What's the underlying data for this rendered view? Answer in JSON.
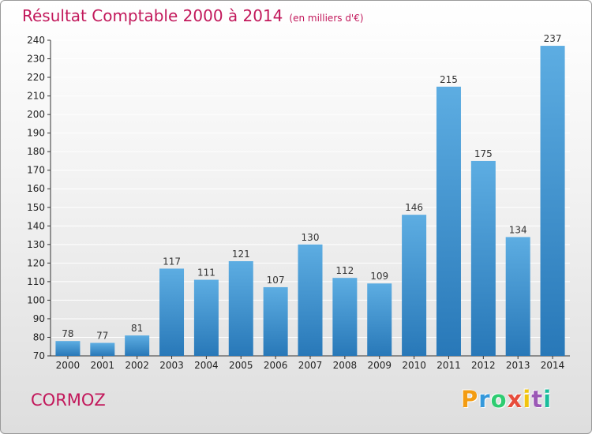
{
  "title": "Résultat Comptable 2000 à 2014",
  "subtitle": "(en milliers d'€)",
  "commune": "CORMOZ",
  "logo": {
    "letters": [
      "P",
      "r",
      "o",
      "x",
      "i",
      "t",
      "i"
    ],
    "colors": [
      "#f39c12",
      "#3498db",
      "#2ecc71",
      "#e74c3c",
      "#f1c40f",
      "#9b59b6",
      "#1abc9c"
    ]
  },
  "chart_data": {
    "type": "bar",
    "title": "Résultat Comptable 2000 à 2014",
    "subtitle": "(en milliers d'€)",
    "xlabel": "",
    "ylabel": "",
    "categories": [
      "2000",
      "2001",
      "2002",
      "2003",
      "2004",
      "2005",
      "2006",
      "2007",
      "2008",
      "2009",
      "2010",
      "2011",
      "2012",
      "2013",
      "2014"
    ],
    "values": [
      78,
      77,
      81,
      117,
      111,
      121,
      107,
      130,
      112,
      109,
      146,
      215,
      175,
      134,
      237
    ],
    "ylim": [
      70,
      240
    ],
    "yticks": [
      70,
      80,
      90,
      100,
      110,
      120,
      130,
      140,
      150,
      160,
      170,
      180,
      190,
      200,
      210,
      220,
      230,
      240
    ],
    "grid": true,
    "bar_color_light": "#5dade2",
    "bar_color_dark": "#2878b8",
    "grid_color": "#ffffff"
  }
}
